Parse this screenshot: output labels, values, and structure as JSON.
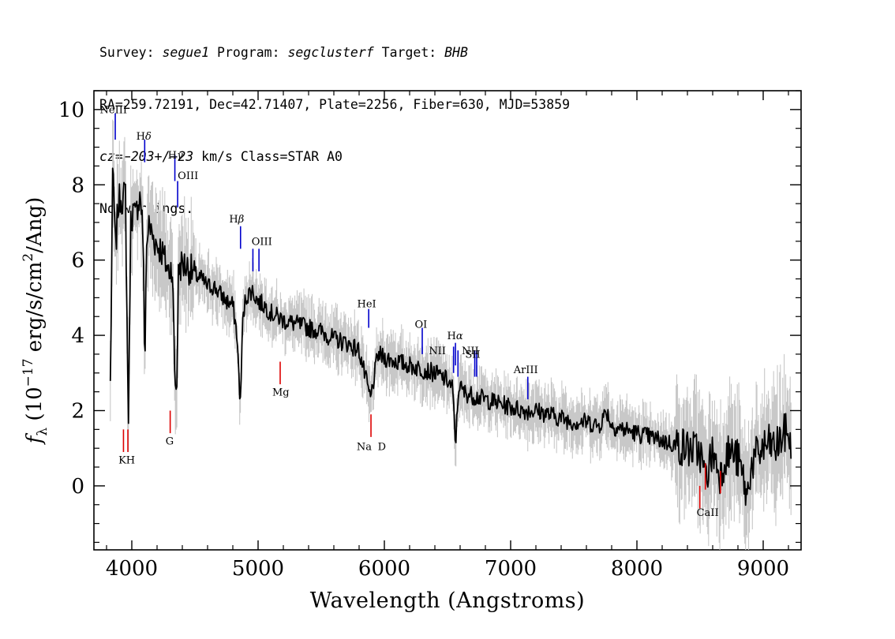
{
  "header": {
    "line1": {
      "survey_label": "Survey: ",
      "survey_value": "segue1",
      "program_label": " Program: ",
      "program_value": "segclusterf",
      "target_label": " Target: ",
      "target_value": "BHB"
    },
    "line2": "RA=259.72191, Dec=42.71407, Plate=2256, Fiber=630, MJD=53859",
    "line3": {
      "cz_label": "cz=",
      "cz_value": "−203+/−23",
      "cz_rest": " km/s Class=STAR A0"
    },
    "line4": "No warnings."
  },
  "chart_data": {
    "type": "line",
    "xlabel": "Wavelength (Angstroms)",
    "ylabel": {
      "f": "f",
      "sub": "λ",
      "pre": " (10",
      "sup_exp": "−17",
      "mid": " erg/s/cm",
      "sup_two": "2",
      "post": "/Ang)"
    },
    "xlim": [
      3700,
      9300
    ],
    "ylim": [
      -1.7,
      10.5
    ],
    "x_ticks": [
      4000,
      5000,
      6000,
      7000,
      8000,
      9000
    ],
    "x_tick_labels": [
      "4000",
      "5000",
      "6000",
      "7000",
      "8000",
      "9000"
    ],
    "y_ticks": [
      0,
      2,
      4,
      6,
      8,
      10
    ],
    "y_tick_labels": [
      "0",
      "2",
      "4",
      "6",
      "8",
      "10"
    ],
    "grid": false,
    "series": [
      {
        "role": "flux",
        "color": "#000000",
        "x": [
          3830,
          3850,
          3870,
          3890,
          3910,
          3930,
          3950,
          3965,
          3975,
          3990,
          4010,
          4030,
          4050,
          4070,
          4090,
          4102,
          4115,
          4130,
          4150,
          4170,
          4200,
          4230,
          4260,
          4290,
          4320,
          4340,
          4355,
          4370,
          4400,
          4450,
          4500,
          4550,
          4600,
          4650,
          4700,
          4750,
          4800,
          4830,
          4850,
          4861,
          4875,
          4900,
          4950,
          5000,
          5050,
          5100,
          5200,
          5300,
          5400,
          5500,
          5600,
          5700,
          5800,
          5890,
          5950,
          6000,
          6100,
          6200,
          6300,
          6400,
          6500,
          6540,
          6563,
          6590,
          6620,
          6700,
          6800,
          6900,
          7000,
          7100,
          7200,
          7300,
          7400,
          7500,
          7600,
          7700,
          7760,
          7800,
          7900,
          8000,
          8100,
          8200,
          8300,
          8400,
          8500,
          8542,
          8600,
          8662,
          8700,
          8750,
          8800,
          8850,
          8870,
          8900,
          8950,
          9000,
          9050,
          9100,
          9150,
          9200,
          9220
        ],
        "y": [
          2.7,
          8.6,
          6.2,
          7.4,
          7.7,
          7.6,
          7.8,
          3.5,
          1.7,
          7.0,
          7.3,
          7.1,
          7.6,
          7.7,
          6.6,
          3.0,
          6.2,
          6.9,
          6.8,
          6.6,
          6.4,
          6.3,
          6.0,
          5.7,
          5.9,
          3.0,
          2.4,
          5.8,
          5.9,
          5.8,
          5.6,
          5.5,
          5.3,
          5.3,
          5.1,
          4.9,
          4.8,
          4.1,
          2.8,
          2.1,
          4.2,
          5.0,
          5.2,
          4.9,
          4.8,
          4.6,
          4.4,
          4.3,
          4.2,
          4.1,
          3.9,
          3.8,
          3.6,
          2.3,
          3.5,
          3.4,
          3.3,
          3.2,
          3.1,
          3.0,
          2.8,
          2.6,
          1.1,
          2.7,
          2.5,
          2.4,
          2.3,
          2.2,
          2.1,
          2.0,
          2.0,
          1.9,
          1.8,
          1.7,
          1.7,
          1.6,
          2.0,
          1.6,
          1.5,
          1.4,
          1.3,
          1.2,
          1.1,
          1.0,
          0.9,
          0.2,
          0.9,
          0.3,
          0.8,
          0.9,
          0.7,
          0.1,
          -0.4,
          0.5,
          0.8,
          1.0,
          1.1,
          1.0,
          1.3,
          1.5,
          0.8
        ]
      }
    ],
    "lines_emission": [
      {
        "label": "NeIII",
        "x": 3869,
        "y_top": 9.9,
        "y_bot": 9.2
      },
      {
        "label": "Hδ",
        "x": 4102,
        "y_top": 9.2,
        "y_bot": 8.6
      },
      {
        "label": "Hγ",
        "x": 4341,
        "y_top": 8.8,
        "y_bot": 8.1
      },
      {
        "label": "OIII",
        "x": 4363,
        "y_top": 8.1,
        "y_bot": 7.4
      },
      {
        "label": "Hβ",
        "x": 4861,
        "y_top": 6.9,
        "y_bot": 6.3
      },
      {
        "label": "OIII",
        "x": 4959,
        "y_top": 6.3,
        "y_bot": 5.7
      },
      {
        "label": "",
        "x": 5007,
        "y_top": 6.3,
        "y_bot": 5.7
      },
      {
        "label": "HeI",
        "x": 5876,
        "y_top": 4.7,
        "y_bot": 4.2
      },
      {
        "label": "OI",
        "x": 6300,
        "y_top": 4.2,
        "y_bot": 3.5
      },
      {
        "label": "NII",
        "x": 6548,
        "y_top": 3.7,
        "y_bot": 3.0
      },
      {
        "label": "Hα",
        "x": 6563,
        "y_top": 3.8,
        "y_bot": 3.2
      },
      {
        "label": "NII",
        "x": 6583,
        "y_top": 3.6,
        "y_bot": 2.9
      },
      {
        "label": "SII",
        "x": 6716,
        "y_top": 3.6,
        "y_bot": 2.9
      },
      {
        "label": "",
        "x": 6731,
        "y_top": 3.6,
        "y_bot": 2.9
      },
      {
        "label": "ArIII",
        "x": 7136,
        "y_top": 2.9,
        "y_bot": 2.3
      }
    ],
    "lines_absorption": [
      {
        "label": "K",
        "x": 3934,
        "y_top": 1.5,
        "y_bot": 0.9
      },
      {
        "label": "H",
        "x": 3969,
        "y_top": 1.5,
        "y_bot": 0.9
      },
      {
        "label": "G",
        "x": 4304,
        "y_top": 2.0,
        "y_bot": 1.4
      },
      {
        "label": "Mg",
        "x": 5175,
        "y_top": 3.3,
        "y_bot": 2.7
      },
      {
        "label": "Na",
        "x": 5894,
        "y_top": 1.9,
        "y_bot": 1.3
      },
      {
        "label": "CaII",
        "x": 8498,
        "y_top": 0.0,
        "y_bot": -0.6
      },
      {
        "label": "",
        "x": 8542,
        "y_top": 0.6,
        "y_bot": -0.1
      },
      {
        "label": "",
        "x": 8662,
        "y_top": 0.4,
        "y_bot": -0.2
      }
    ],
    "line_labels": [
      {
        "text": "NeIII",
        "x": 3855,
        "y": 9.9
      },
      {
        "text": "H",
        "greek": "δ",
        "x": 4095,
        "y": 9.2
      },
      {
        "text": "H",
        "greek": "γ",
        "x": 4345,
        "y": 8.7
      },
      {
        "text": "OIII",
        "x": 4445,
        "y": 8.15
      },
      {
        "text": "H",
        "greek": "β",
        "x": 4830,
        "y": 7.0
      },
      {
        "text": "OIII",
        "x": 5030,
        "y": 6.4
      },
      {
        "text": "HeI",
        "x": 5860,
        "y": 4.75
      },
      {
        "text": "OI",
        "x": 6290,
        "y": 4.2
      },
      {
        "text": "NII",
        "x": 6420,
        "y": 3.5
      },
      {
        "text": "H",
        "greek": "α",
        "x": 6560,
        "y": 3.9
      },
      {
        "text": "NII",
        "x": 6680,
        "y": 3.5
      },
      {
        "text": "SII",
        "x": 6700,
        "y": 3.4
      },
      {
        "text": "ArIII",
        "x": 7120,
        "y": 3.0
      },
      {
        "text": "Mg",
        "x": 5180,
        "y": 2.4
      },
      {
        "text": "KH",
        "x": 3960,
        "y": 0.6
      },
      {
        "text": "G",
        "x": 4300,
        "y": 1.1
      },
      {
        "text": "Na",
        "x": 5840,
        "y": 0.95
      },
      {
        "text": "D",
        "x": 5980,
        "y": 0.95
      },
      {
        "text": "CaII",
        "x": 8560,
        "y": -0.8
      }
    ],
    "colors": {
      "flux": "#000000",
      "error_band": "#c8c8c8",
      "emission_marker": "#0000cc",
      "absorption_marker": "#dd0000",
      "axes": "#000000"
    }
  }
}
